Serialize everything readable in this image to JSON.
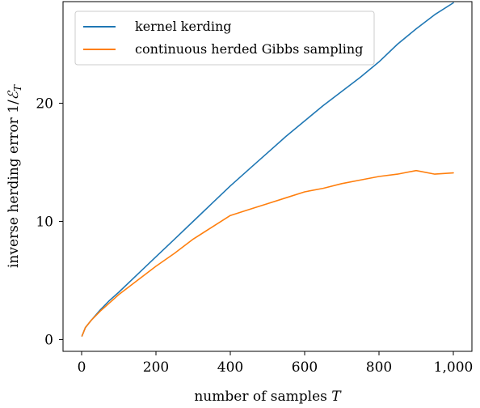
{
  "chart_data": {
    "type": "line",
    "xlabel": "number of samples",
    "xlabel_var": "T",
    "ylabel": "inverse herding error 1/",
    "ylabel_var": "ℰ",
    "ylabel_sub": "T",
    "xlim": [
      -50,
      1050
    ],
    "ylim": [
      -1,
      28.6
    ],
    "xticks": [
      0,
      200,
      400,
      600,
      800,
      1000
    ],
    "xtick_labels": [
      "0",
      "200",
      "400",
      "600",
      "800",
      "1,000"
    ],
    "yticks": [
      0,
      10,
      20
    ],
    "ytick_labels": [
      "0",
      "10",
      "20"
    ],
    "grid": false,
    "legend_position": "top-left",
    "series": [
      {
        "name": "kernel kerding",
        "color": "#1f77b4",
        "x": [
          1,
          10,
          25,
          50,
          75,
          100,
          150,
          200,
          250,
          300,
          350,
          400,
          450,
          500,
          550,
          600,
          650,
          700,
          750,
          800,
          850,
          900,
          950,
          1000
        ],
        "y": [
          0.3,
          1.0,
          1.6,
          2.5,
          3.3,
          4.0,
          5.5,
          7.0,
          8.5,
          10.0,
          11.5,
          13.0,
          14.4,
          15.8,
          17.2,
          18.5,
          19.8,
          21.0,
          22.2,
          23.5,
          25.0,
          26.3,
          27.5,
          28.5
        ]
      },
      {
        "name": "continuous herded Gibbs sampling",
        "color": "#ff7f0e",
        "x": [
          1,
          10,
          25,
          50,
          75,
          100,
          150,
          200,
          250,
          300,
          350,
          400,
          450,
          500,
          550,
          600,
          650,
          700,
          750,
          800,
          850,
          900,
          950,
          1000
        ],
        "y": [
          0.3,
          1.0,
          1.6,
          2.4,
          3.1,
          3.8,
          5.0,
          6.2,
          7.3,
          8.5,
          9.5,
          10.5,
          11.0,
          11.5,
          12.0,
          12.5,
          12.8,
          13.2,
          13.5,
          13.8,
          14.0,
          14.3,
          14.0,
          14.1
        ]
      }
    ]
  }
}
